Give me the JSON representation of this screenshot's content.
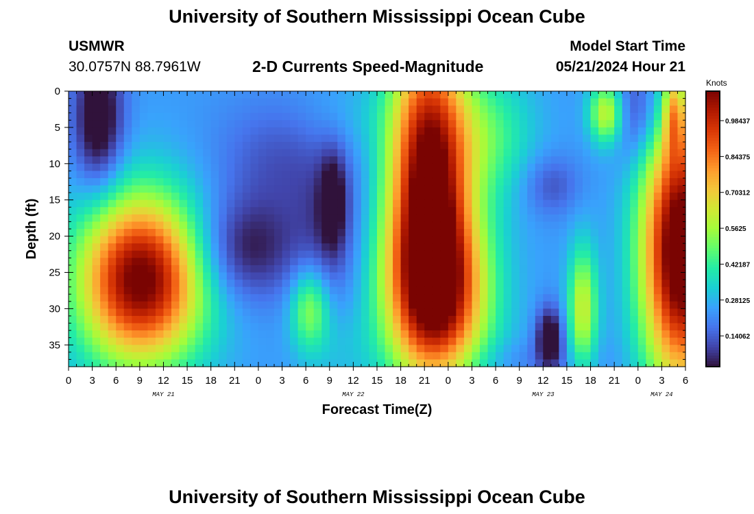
{
  "page": {
    "title": "University of Southern Mississippi Ocean Cube",
    "station_id": "USMWR",
    "coordinates": "30.0757N  88.7961W",
    "plot_title": "2-D Currents Speed-Magnitude",
    "model_start_label": "Model Start Time",
    "model_start_value": "05/21/2024 Hour 21",
    "footer_title": "University of Southern Mississippi Ocean Cube"
  },
  "chart_data": {
    "type": "heatmap",
    "title": "2-D Currents Speed-Magnitude",
    "xlabel": "Forecast Time(Z)",
    "ylabel": "Depth (ft)",
    "x_tick_labels": [
      "0",
      "3",
      "6",
      "9",
      "12",
      "15",
      "18",
      "21",
      "0",
      "3",
      "6",
      "9",
      "12",
      "15",
      "18",
      "21",
      "0",
      "3",
      "6",
      "9",
      "12",
      "15",
      "18",
      "21",
      "0",
      "3",
      "6"
    ],
    "x_range_hours": [
      0,
      78
    ],
    "date_labels": [
      {
        "label": "MAY 21",
        "hour": 12
      },
      {
        "label": "MAY 22",
        "hour": 36
      },
      {
        "label": "MAY 23",
        "hour": 60
      },
      {
        "label": "MAY 24",
        "hour": 75
      }
    ],
    "y_tick_labels": [
      "0",
      "5",
      "10",
      "15",
      "20",
      "25",
      "30",
      "35"
    ],
    "y_range_ft": [
      0,
      38
    ],
    "colorbar": {
      "label": "Knots",
      "ticks": [
        "0.14062",
        "0.28125",
        "0.42187",
        "0.5625",
        "0.70312",
        "0.84375",
        "0.98437"
      ],
      "range": [
        0.02,
        1.1
      ],
      "colors": [
        "#30123b",
        "#4145ab",
        "#4675ed",
        "#39a2fc",
        "#1bcfd4",
        "#24eca6",
        "#61fc6c",
        "#a4fc3b",
        "#d1e834",
        "#f3c63a",
        "#fe9b2d",
        "#f36315",
        "#d93806",
        "#b11901",
        "#7a0402"
      ]
    },
    "field_cell_size": {
      "hours": 1,
      "feet": 1
    },
    "field_blobs_knots": [
      {
        "hour": 3.8,
        "depth": 4,
        "sh": 2.2,
        "sd": 7,
        "amp": -0.3
      },
      {
        "hour": 9.2,
        "depth": 26,
        "sh": 5.5,
        "sd": 8,
        "amp": 0.9
      },
      {
        "hour": 22,
        "depth": 22,
        "sh": 5,
        "sd": 5,
        "amp": -0.22
      },
      {
        "hour": 27,
        "depth": 10,
        "sh": 6,
        "sd": 6,
        "amp": -0.12
      },
      {
        "hour": 33,
        "depth": 20,
        "sh": 3,
        "sd": 7,
        "amp": -0.12
      },
      {
        "hour": 35,
        "depth": 4,
        "sh": 4,
        "sd": 4,
        "amp": 0.05
      },
      {
        "hour": 34,
        "depth": 36,
        "sh": 3,
        "sd": 4,
        "amp": 0.05
      },
      {
        "hour": 33.5,
        "depth": 15,
        "sh": 1.2,
        "sd": 5,
        "amp": -0.18
      },
      {
        "hour": 30.5,
        "depth": 30,
        "sh": 1.7,
        "sd": 4,
        "amp": 0.3
      },
      {
        "hour": 45.5,
        "depth": 10,
        "sh": 3.5,
        "sd": 13,
        "amp": 0.85
      },
      {
        "hour": 46.5,
        "depth": 28,
        "sh": 4.5,
        "sd": 9,
        "amp": 0.8
      },
      {
        "hour": 53,
        "depth": 6,
        "sh": 4,
        "sd": 6,
        "amp": 0.2
      },
      {
        "hour": 60.8,
        "depth": 34,
        "sh": 1.2,
        "sd": 3,
        "amp": -0.3
      },
      {
        "hour": 61,
        "depth": 13,
        "sh": 2.5,
        "sd": 3,
        "amp": -0.12
      },
      {
        "hour": 65,
        "depth": 30,
        "sh": 1.3,
        "sd": 6,
        "amp": 0.38
      },
      {
        "hour": 68,
        "depth": 3,
        "sh": 1.5,
        "sd": 3,
        "amp": 0.4
      },
      {
        "hour": 72,
        "depth": 3,
        "sh": 2.5,
        "sd": 5,
        "amp": -0.18
      },
      {
        "hour": 77.5,
        "depth": 22,
        "sh": 3.5,
        "sd": 13,
        "amp": 1.0
      },
      {
        "hour": 76.5,
        "depth": 3,
        "sh": 0.9,
        "sd": 4,
        "amp": 0.3
      },
      {
        "hour": 56,
        "depth": 37,
        "sh": 8,
        "sd": 2,
        "amp": -0.05
      }
    ],
    "field_base_knots": 0.24
  }
}
